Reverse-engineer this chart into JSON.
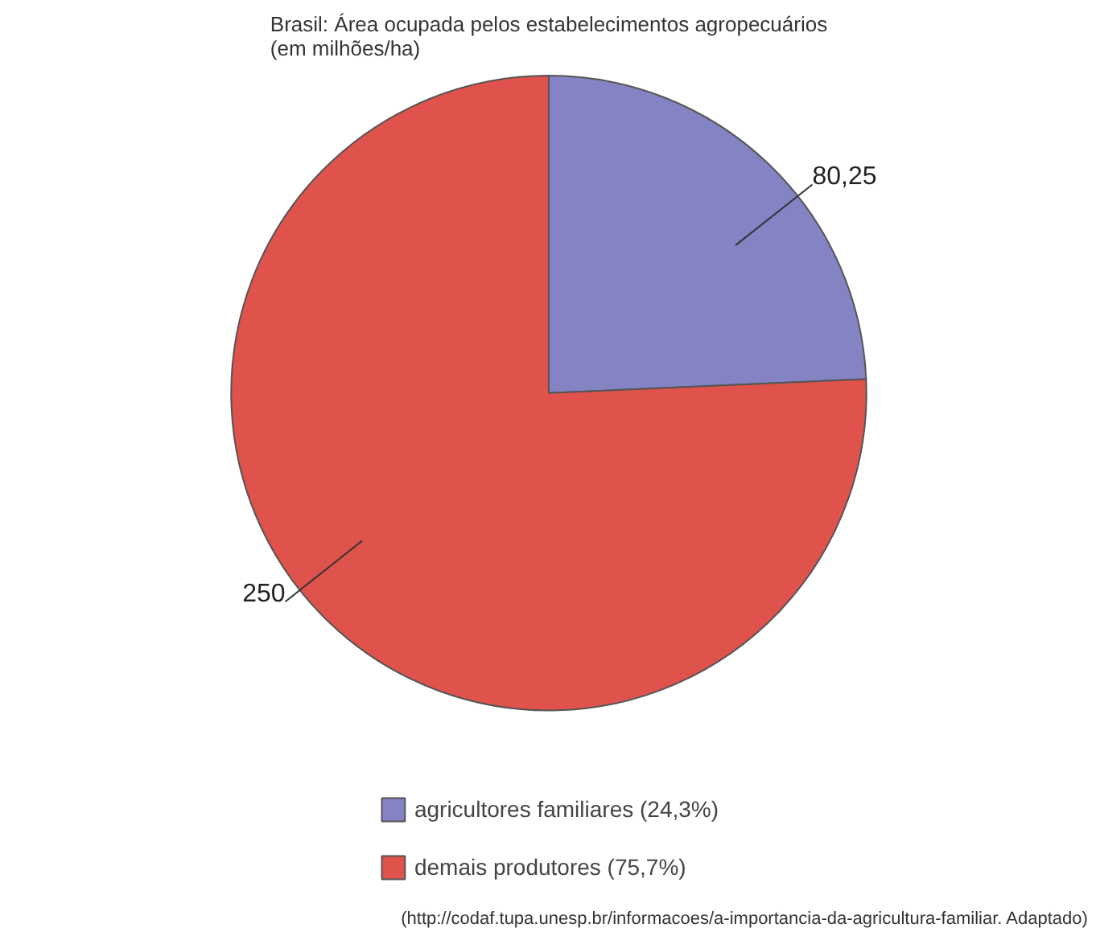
{
  "chart_data": {
    "type": "pie",
    "title": "Brasil: Área ocupada pelos estabelecimentos agropecuários\n(em milhões/ha)",
    "categories": [
      "agricultores familiares (24,3%)",
      "demais produtores (75,7%)"
    ],
    "values": [
      80.25,
      250
    ],
    "colors": [
      "#8484c4",
      "#e0524c"
    ],
    "value_labels": [
      "80,25",
      "250"
    ],
    "legend": "bottom",
    "annotations": [
      "(http://codaf.tupa.unesp.br/informacoes/a-importancia-da-agricultura-familiar. Adaptado)"
    ]
  }
}
